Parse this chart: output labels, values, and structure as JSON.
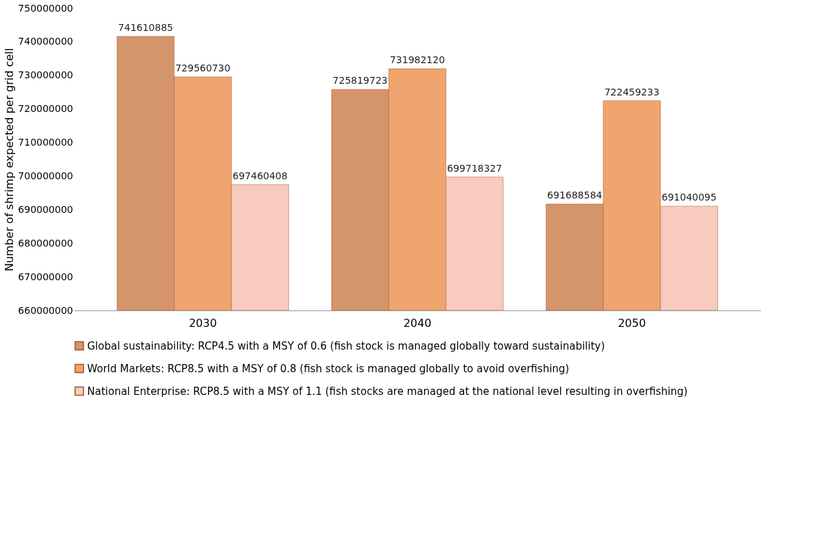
{
  "chart_data": {
    "type": "bar",
    "ylabel": "Number of shrimp expected per grid cell",
    "categories": [
      "2030",
      "2040",
      "2050"
    ],
    "series": [
      {
        "name": "Global sustainability: RCP4.5 with a MSY of 0.6 (fish stock is managed globally toward sustainability)",
        "color": "#d4956a",
        "values": [
          741610885,
          725819723,
          691688584
        ]
      },
      {
        "name": "World Markets: RCP8.5 with a MSY of 0.8 (fish stock is managed globally to avoid overfishing)",
        "color": "#f0a46e",
        "values": [
          729560730,
          731982120,
          722459233
        ]
      },
      {
        "name": "National Enterprise: RCP8.5 with a MSY of 1.1 (fish stocks are managed at the national level resulting in overfishing)",
        "color": "#f7cbbd",
        "values": [
          697460408,
          699718327,
          691040095
        ]
      }
    ],
    "ylim": [
      660000000,
      750000000
    ],
    "yticks": [
      660000000,
      670000000,
      680000000,
      690000000,
      700000000,
      710000000,
      720000000,
      730000000,
      740000000,
      750000000
    ],
    "data_labels": true,
    "grid": false,
    "legend": "bottom"
  }
}
